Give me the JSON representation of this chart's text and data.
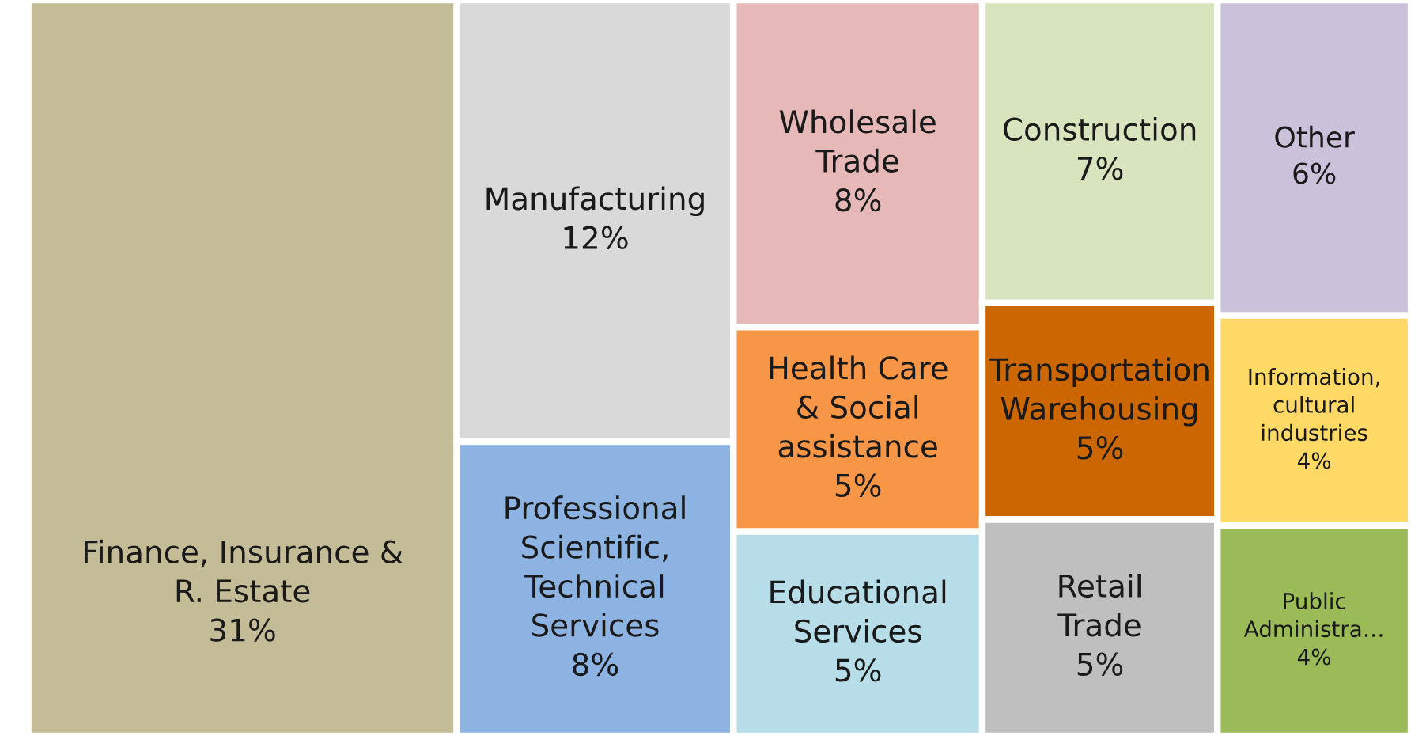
{
  "chart_data": {
    "type": "other",
    "categories": [
      "Finance, Insurance & R. Estate",
      "Manufacturing",
      "Professional Scientific, Technical Services",
      "Wholesale Trade",
      "Health Care & Social assistance",
      "Educational Services",
      "Construction",
      "Transportation Warehousing",
      "Retail Trade",
      "Other",
      "Information, cultural industries",
      "Public Administra…"
    ],
    "values": [
      31,
      12,
      8,
      8,
      5,
      5,
      7,
      5,
      5,
      6,
      4,
      4
    ],
    "value_labels": [
      "31%",
      "12%",
      "8%",
      "8%",
      "5%",
      "5%",
      "7%",
      "5%",
      "5%",
      "6%",
      "4%",
      "4%"
    ],
    "colors": [
      "#c4bc96",
      "#d9d9d9",
      "#8db3e2",
      "#e6b9b8",
      "#f79646",
      "#b7dde8",
      "#d7e4bd",
      "#cc6600",
      "#bfbfbf",
      "#ccc1da",
      "#ffd966",
      "#9bbb59"
    ]
  }
}
